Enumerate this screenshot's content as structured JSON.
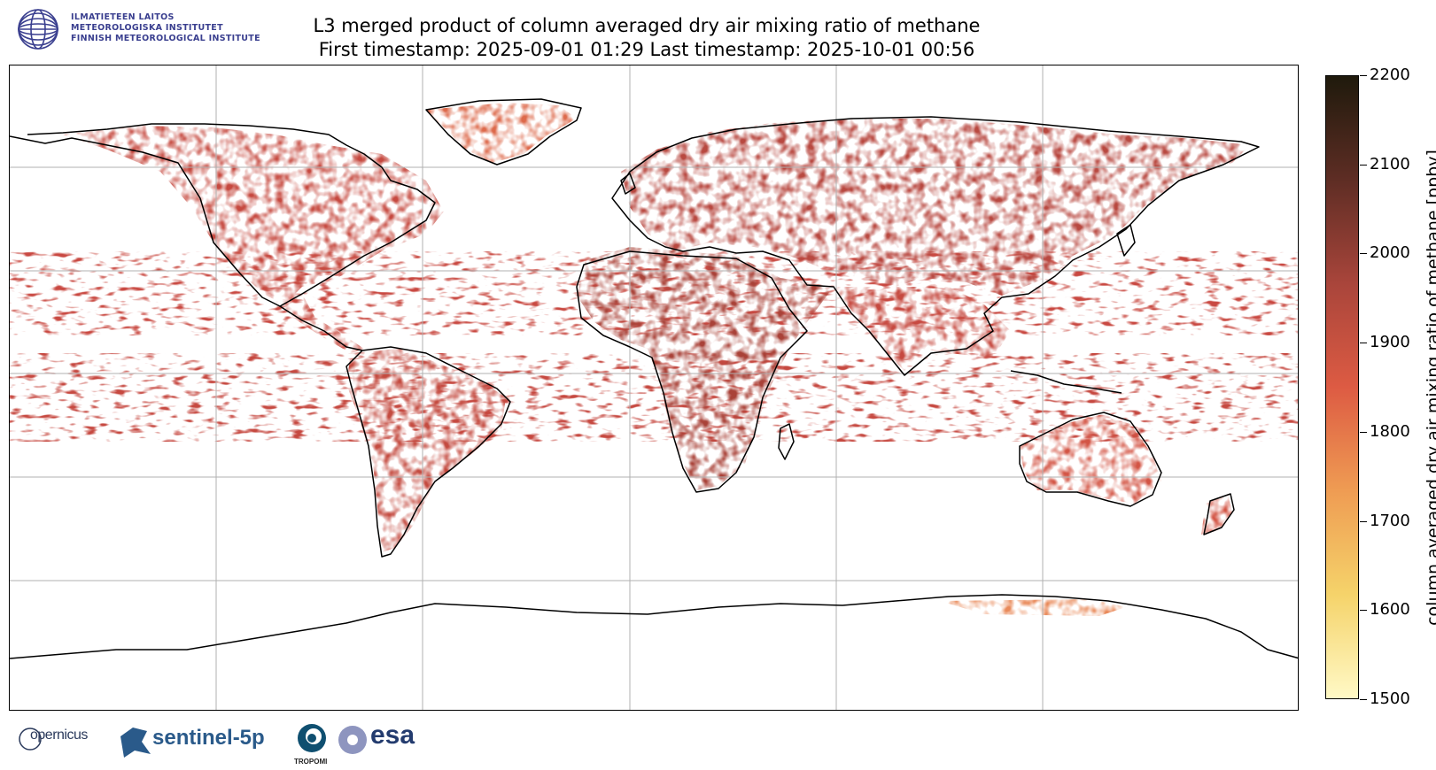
{
  "header": {
    "institute_lines": [
      "ILMATIETEEN LAITOS",
      "METEOROLOGISKA INSTITUTET",
      "FINNISH METEOROLOGICAL INSTITUTE"
    ],
    "title_line1": "L3 merged product of column averaged dry air mixing ratio of methane",
    "title_line2": "First timestamp: 2025-09-01 01:29   Last timestamp: 2025-10-01 00:56"
  },
  "colorbar": {
    "label": "column averaged dry air mixing ratio of methane [ppbv]",
    "ticks": [
      "2200",
      "2100",
      "2000",
      "1900",
      "1800",
      "1700",
      "1600",
      "1500"
    ],
    "min": 1500,
    "max": 2200,
    "colors": [
      "#fff9c6",
      "#f5d36a",
      "#ef9c53",
      "#dd5b43",
      "#a9453b",
      "#5e2d24",
      "#1f1a0c"
    ]
  },
  "map": {
    "projection": "equirectangular",
    "grid": true,
    "ocean_color": "#ffffff",
    "land_data_colors": [
      "#cf4b40",
      "#b5463c",
      "#d76348",
      "#e8855a",
      "#9c3f36"
    ]
  },
  "footer": {
    "logos": [
      "opernicus",
      "sentinel-5p",
      "TROPOMI",
      "esa"
    ]
  }
}
